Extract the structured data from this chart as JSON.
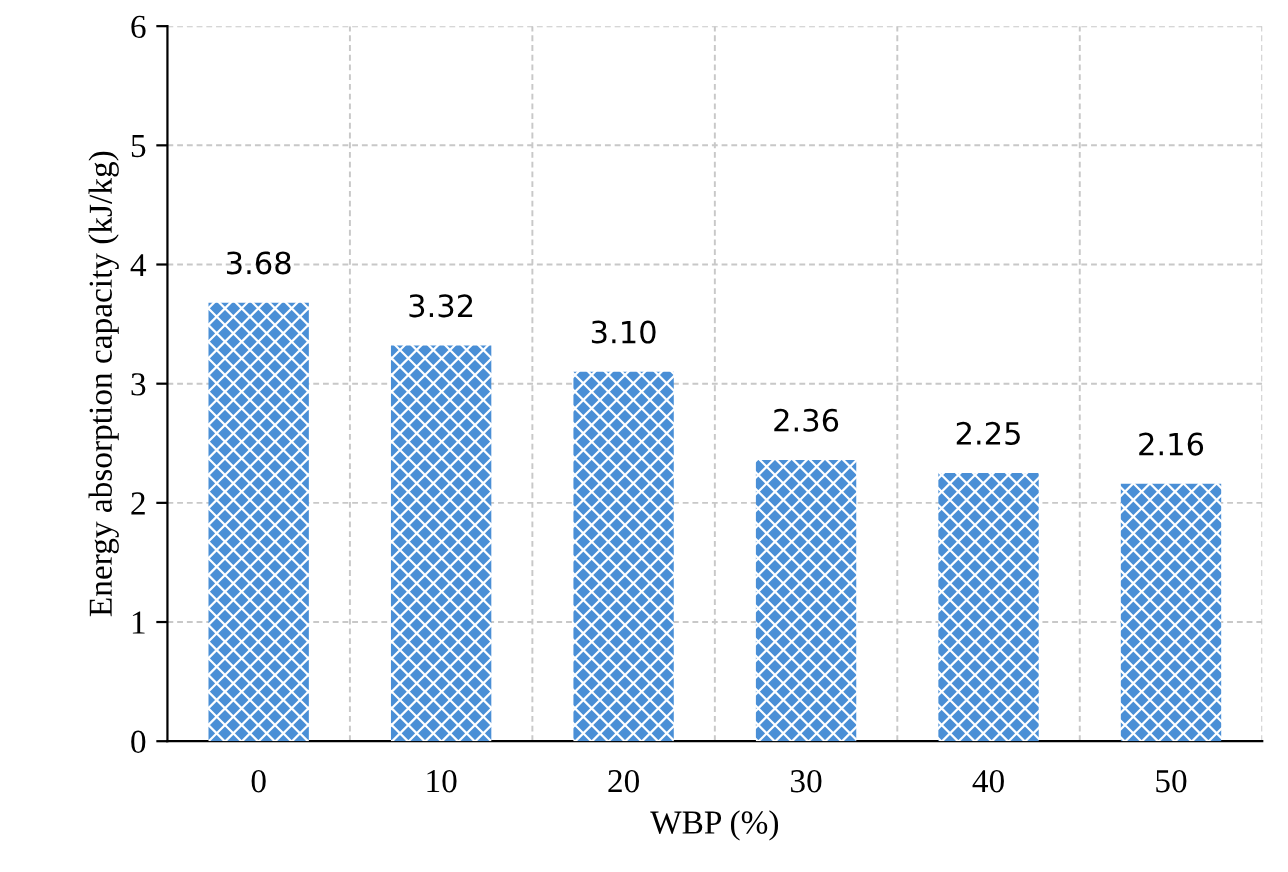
{
  "chart_data": {
    "type": "bar",
    "xlabel": "WBP (%)",
    "ylabel": "Energy absorption capacity (kJ/kg)",
    "categories": [
      "0",
      "10",
      "20",
      "30",
      "40",
      "50"
    ],
    "values": [
      3.68,
      3.32,
      3.1,
      2.36,
      2.25,
      2.16
    ],
    "value_labels": [
      "3.68",
      "3.32",
      "3.10",
      "2.36",
      "2.25",
      "2.16"
    ],
    "color": "#4a8fd6",
    "ylim": [
      0,
      6
    ],
    "yticks": [
      0,
      1,
      2,
      3,
      4,
      5,
      6
    ],
    "grid": true
  }
}
